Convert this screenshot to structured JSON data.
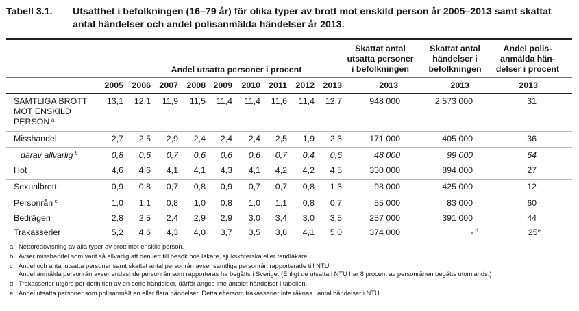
{
  "table": {
    "number": "Tabell 3.1.",
    "title": "Utsatthet i befolkningen (16–79 år) för olika typer av brott mot enskild person år 2005–2013 samt skattat antal händelser och andel polisanmälda händelser år 2013.",
    "group_header": "Andel utsatta personer i procent",
    "col_estimated_persons": "Skattat antal utsatta personer i befolkningen",
    "col_estimated_events": "Skattat antal händelser i befolkningen",
    "col_reported_share": "Andel polis-anmälda hän-delser i procent",
    "years": [
      "2005",
      "2006",
      "2007",
      "2008",
      "2009",
      "2010",
      "2011",
      "2012",
      "2013"
    ],
    "extra_year": "2013",
    "rows": [
      {
        "label": "SAMTLIGA BROTT MOT ENSKILD PERSON",
        "label_lines": [
          "SAMTLIGA BROTT",
          "MOT ENSKILD",
          "PERSON"
        ],
        "note": "a",
        "values": [
          "13,1",
          "12,1",
          "11,9",
          "11,5",
          "11,4",
          "11,4",
          "11,6",
          "11,4",
          "12,7"
        ],
        "persons": "948 000",
        "events": "2 573 000",
        "reported": "31",
        "events_note": "",
        "reported_note": "",
        "italic": false
      },
      {
        "label": "Misshandel",
        "label_lines": [
          "Misshandel"
        ],
        "note": "",
        "values": [
          "2,7",
          "2,5",
          "2,9",
          "2,4",
          "2,4",
          "2,4",
          "2,5",
          "1,9",
          "2,3"
        ],
        "persons": "171 000",
        "events": "405 000",
        "reported": "36",
        "events_note": "",
        "reported_note": "",
        "italic": false
      },
      {
        "label": "därav allvarlig",
        "label_lines": [
          "därav allvarlig"
        ],
        "note": "b",
        "values": [
          "0,8",
          "0,6",
          "0,7",
          "0,6",
          "0,6",
          "0,6",
          "0,7",
          "0,4",
          "0,6"
        ],
        "persons": "48 000",
        "events": "99 000",
        "reported": "64",
        "events_note": "",
        "reported_note": "",
        "italic": true
      },
      {
        "label": "Hot",
        "label_lines": [
          "Hot"
        ],
        "note": "",
        "values": [
          "4,6",
          "4,6",
          "4,1",
          "4,1",
          "4,3",
          "4,1",
          "4,2",
          "4,2",
          "4,5"
        ],
        "persons": "330 000",
        "events": "894 000",
        "reported": "27",
        "events_note": "",
        "reported_note": "",
        "italic": false
      },
      {
        "label": "Sexualbrott",
        "label_lines": [
          "Sexualbrott"
        ],
        "note": "",
        "values": [
          "0,9",
          "0,8",
          "0,7",
          "0,8",
          "0,9",
          "0,7",
          "0,7",
          "0,8",
          "1,3"
        ],
        "persons": "98 000",
        "events": "425 000",
        "reported": "12",
        "events_note": "",
        "reported_note": "",
        "italic": false
      },
      {
        "label": "Personrån",
        "label_lines": [
          "Personrån"
        ],
        "note": "c",
        "values": [
          "1,0",
          "1,1",
          "0,8",
          "1,0",
          "0,8",
          "1,0",
          "1,1",
          "0,8",
          "0,7"
        ],
        "persons": "55 000",
        "events": "83 000",
        "reported": "60",
        "events_note": "",
        "reported_note": "",
        "italic": false
      },
      {
        "label": "Bedrägeri",
        "label_lines": [
          "Bedrägeri"
        ],
        "note": "",
        "values": [
          "2,8",
          "2,5",
          "2,4",
          "2,9",
          "2,9",
          "3,0",
          "3,4",
          "3,0",
          "3,5"
        ],
        "persons": "257 000",
        "events": "391 000",
        "reported": "44",
        "events_note": "",
        "reported_note": "",
        "italic": false
      },
      {
        "label": "Trakasserier",
        "label_lines": [
          "Trakasserier"
        ],
        "note": "",
        "values": [
          "5,2",
          "4,6",
          "4,3",
          "4,0",
          "3,7",
          "3,5",
          "3,8",
          "4,1",
          "5,0"
        ],
        "persons": "374 000",
        "events": "-",
        "reported": "25",
        "events_note": "d",
        "reported_note": "e",
        "italic": false
      }
    ]
  },
  "footnotes": [
    {
      "mark": "a",
      "text": "Nettoredovisning av alla typer av brott mot enskild person."
    },
    {
      "mark": "b",
      "text": "Avser misshandel som varit så allvarlig att den lett till besök hos läkare, sjuksköterska eller tandläkare."
    },
    {
      "mark": "c",
      "text": "Andel och antal utsatta personer samt skattat antal personrån avser samtliga personrån rapporterade till NTU."
    },
    {
      "mark": "",
      "text": "Andel anmälda personrån avser endast de personrån som rapporteras ha begåtts i Sverige. (Enligt de utsatta i NTU har 8 procent av personrånen begåtts utomlands.)"
    },
    {
      "mark": "d",
      "text": "Trakasserier utgörs per definition av en serie händelser, därför anges inte antalet händelser i tabellen."
    },
    {
      "mark": "e",
      "text": "Andel utsatta personer som polisanmält en eller flera händelser. Detta eftersom trakasserier inte räknas i antal händelser i NTU."
    }
  ]
}
